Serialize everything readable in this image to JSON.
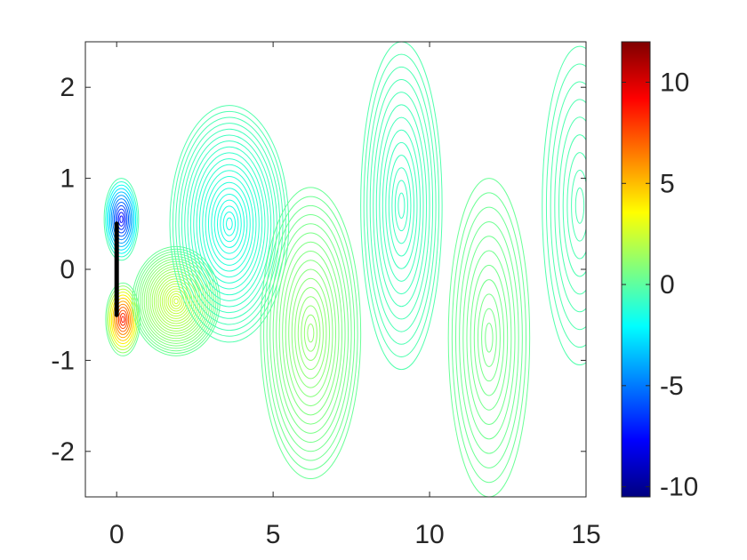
{
  "chart_data": {
    "type": "contour",
    "title": "",
    "xlabel": "",
    "ylabel": "",
    "xlim": [
      -1,
      15
    ],
    "ylim": [
      -2.5,
      2.5
    ],
    "x_ticks": [
      0,
      5,
      10,
      15
    ],
    "x_tick_labels": [
      "0",
      "5",
      "10",
      "15"
    ],
    "y_ticks": [
      -2,
      -1,
      0,
      1,
      2
    ],
    "y_tick_labels": [
      "-2",
      "-1",
      "0",
      "1",
      "2"
    ],
    "grid": false,
    "colormap": "jet",
    "colorbar": {
      "range": [
        -10.5,
        12
      ],
      "ticks": [
        -10,
        -5,
        0,
        5,
        10
      ],
      "tick_labels": [
        "-10",
        "-5",
        "0",
        "5",
        "10"
      ]
    },
    "plate": {
      "x": 0,
      "y_range": [
        -0.5,
        0.5
      ]
    },
    "vortices": [
      {
        "x": 0.15,
        "y": 0.55,
        "rx": 0.55,
        "ry": 0.45,
        "peak": -8,
        "levels": 12
      },
      {
        "x": 0.2,
        "y": -0.55,
        "rx": 0.55,
        "ry": 0.4,
        "peak": 9,
        "levels": 12
      },
      {
        "x": 1.9,
        "y": -0.35,
        "rx": 1.4,
        "ry": 0.6,
        "peak": 2.5,
        "levels": 22
      },
      {
        "x": 3.6,
        "y": 0.5,
        "rx": 1.9,
        "ry": 1.3,
        "peak": -1.6,
        "levels": 20
      },
      {
        "x": 6.2,
        "y": -0.7,
        "rx": 1.6,
        "ry": 1.6,
        "peak": 1.2,
        "levels": 16
      },
      {
        "x": 9.1,
        "y": 0.7,
        "rx": 1.3,
        "ry": 1.8,
        "peak": -0.8,
        "levels": 13
      },
      {
        "x": 11.9,
        "y": -0.75,
        "rx": 1.3,
        "ry": 1.75,
        "peak": 0.6,
        "levels": 11
      },
      {
        "x": 14.8,
        "y": 0.7,
        "rx": 1.2,
        "ry": 1.75,
        "peak": -0.4,
        "levels": 9
      }
    ]
  }
}
